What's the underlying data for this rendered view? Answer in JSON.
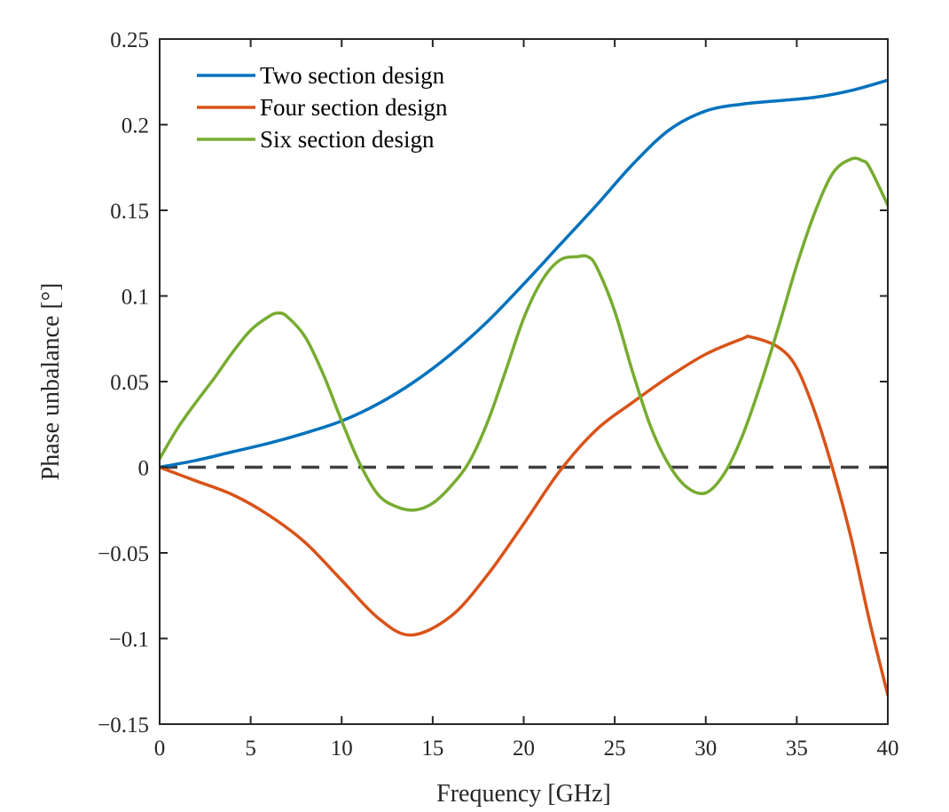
{
  "chart_data": {
    "type": "line",
    "xlabel": "Frequency [GHz]",
    "ylabel": "Phase unbalance [°]",
    "xlim": [
      0,
      40
    ],
    "ylim": [
      -0.15,
      0.25
    ],
    "xticks": [
      0,
      5,
      10,
      15,
      20,
      25,
      30,
      35,
      40
    ],
    "xtick_labels": [
      "0",
      "5",
      "10",
      "15",
      "20",
      "25",
      "30",
      "35",
      "40"
    ],
    "yticks": [
      -0.15,
      -0.1,
      -0.05,
      0,
      0.05,
      0.1,
      0.15,
      0.2,
      0.25
    ],
    "ytick_labels": [
      "−0.15",
      "−0.1",
      "−0.05",
      "0",
      "0.05",
      "0.1",
      "0.15",
      "0.2",
      "0.25"
    ],
    "grid": false,
    "legend_position": "top-left",
    "reference_line": {
      "y": 0,
      "style": "dashed",
      "color": "#404040"
    },
    "series": [
      {
        "name": "Two section design",
        "color": "#0072BD",
        "x": [
          0,
          2,
          4,
          6,
          8,
          10,
          12,
          14,
          16,
          18,
          20,
          22,
          24,
          26,
          28,
          30,
          32,
          34,
          36,
          38,
          40
        ],
        "y": [
          0,
          0.004,
          0.009,
          0.014,
          0.02,
          0.027,
          0.037,
          0.05,
          0.066,
          0.085,
          0.107,
          0.13,
          0.153,
          0.177,
          0.197,
          0.208,
          0.212,
          0.214,
          0.216,
          0.22,
          0.226
        ]
      },
      {
        "name": "Four section design",
        "color": "#D95319",
        "x": [
          0,
          2,
          4,
          6,
          8,
          10,
          12,
          13.8,
          16,
          18,
          20,
          22,
          24,
          26,
          28,
          30,
          32,
          32.5,
          34,
          35,
          36,
          37,
          38,
          39,
          40
        ],
        "y": [
          0,
          -0.008,
          -0.016,
          -0.028,
          -0.044,
          -0.066,
          -0.088,
          -0.098,
          -0.087,
          -0.063,
          -0.033,
          -0.002,
          0.022,
          0.038,
          0.053,
          0.066,
          0.075,
          0.076,
          0.07,
          0.058,
          0.032,
          -0.002,
          -0.042,
          -0.09,
          -0.133
        ]
      },
      {
        "name": "Six section design",
        "color": "#77AC30",
        "x": [
          0,
          1,
          2,
          3,
          4,
          5,
          6,
          6.5,
          7,
          8,
          9,
          10,
          11,
          12,
          13,
          14,
          15,
          16,
          17,
          18,
          19,
          20,
          21,
          22,
          23,
          23.5,
          24,
          25,
          26,
          27,
          28,
          29,
          30,
          31,
          32,
          33,
          34,
          35,
          36,
          37,
          38,
          38.6,
          39,
          40
        ],
        "y": [
          0.005,
          0.023,
          0.038,
          0.052,
          0.067,
          0.08,
          0.088,
          0.09,
          0.088,
          0.076,
          0.054,
          0.027,
          0.002,
          -0.016,
          -0.023,
          -0.025,
          -0.021,
          -0.011,
          0.003,
          0.026,
          0.056,
          0.087,
          0.109,
          0.121,
          0.123,
          0.123,
          0.117,
          0.091,
          0.055,
          0.023,
          0.001,
          -0.012,
          -0.015,
          -0.004,
          0.018,
          0.048,
          0.082,
          0.118,
          0.149,
          0.172,
          0.18,
          0.179,
          0.175,
          0.153
        ]
      }
    ]
  }
}
